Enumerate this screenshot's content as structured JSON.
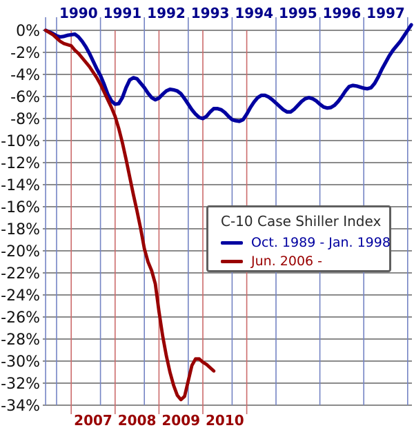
{
  "chart_data": {
    "type": "line",
    "title": "C-10 Case Shiller Index",
    "y_axis": {
      "unit": "%",
      "max": 0,
      "min": -34,
      "step": 2,
      "tick_labels": [
        "0%",
        "-2%",
        "-4%",
        "-6%",
        "-8%",
        "-10%",
        "-12%",
        "-14%",
        "-16%",
        "-18%",
        "-20%",
        "-22%",
        "-24%",
        "-26%",
        "-28%",
        "-30%",
        "-32%",
        "-34%"
      ],
      "label_color": "#111111"
    },
    "top_axis": {
      "tick_labels": [
        "1990",
        "1991",
        "1992",
        "1993",
        "1994",
        "1995",
        "1996",
        "1997"
      ],
      "label_color": "#00008b",
      "gridline_color": "#7484c4"
    },
    "bottom_axis": {
      "tick_labels": [
        "2007",
        "2008",
        "2009",
        "2010"
      ],
      "label_color": "#990000",
      "gridline_color": "#cc6b6b"
    },
    "grid": {
      "horizontal_color": "#7a7a7a"
    },
    "alignment": "both series plotted by months since series start",
    "series": [
      {
        "name": "Oct. 1989 - Jan. 1998",
        "color": "#0000a0",
        "start_label": "Oct. 1989",
        "interval": "monthly",
        "axis": "top",
        "values": [
          0.0,
          -0.15,
          -0.3,
          -0.5,
          -0.6,
          -0.55,
          -0.45,
          -0.4,
          -0.35,
          -0.6,
          -1.0,
          -1.5,
          -2.1,
          -2.8,
          -3.5,
          -4.1,
          -4.9,
          -5.8,
          -6.4,
          -6.7,
          -6.65,
          -6.1,
          -5.2,
          -4.5,
          -4.3,
          -4.4,
          -4.8,
          -5.2,
          -5.7,
          -6.1,
          -6.3,
          -6.15,
          -5.8,
          -5.5,
          -5.35,
          -5.4,
          -5.5,
          -5.75,
          -6.2,
          -6.7,
          -7.2,
          -7.6,
          -7.9,
          -8.0,
          -7.8,
          -7.4,
          -7.1,
          -7.1,
          -7.2,
          -7.45,
          -7.8,
          -8.1,
          -8.2,
          -8.25,
          -8.1,
          -7.6,
          -7.0,
          -6.5,
          -6.1,
          -5.9,
          -5.9,
          -6.05,
          -6.3,
          -6.6,
          -6.9,
          -7.2,
          -7.4,
          -7.4,
          -7.15,
          -6.8,
          -6.45,
          -6.2,
          -6.1,
          -6.2,
          -6.4,
          -6.7,
          -6.95,
          -7.05,
          -7.0,
          -6.8,
          -6.45,
          -6.0,
          -5.5,
          -5.1,
          -5.0,
          -5.05,
          -5.15,
          -5.25,
          -5.3,
          -5.2,
          -4.8,
          -4.2,
          -3.5,
          -2.9,
          -2.3,
          -1.8,
          -1.4,
          -1.0,
          -0.5,
          0.0,
          0.5
        ]
      },
      {
        "name": "Jun. 2006 -",
        "color": "#990000",
        "start_label": "Jun. 2006",
        "interval": "monthly",
        "axis": "bottom",
        "values": [
          0.0,
          -0.2,
          -0.4,
          -0.7,
          -1.0,
          -1.2,
          -1.3,
          -1.4,
          -1.8,
          -2.1,
          -2.5,
          -2.9,
          -3.3,
          -3.8,
          -4.3,
          -4.9,
          -5.6,
          -6.3,
          -7.0,
          -7.8,
          -8.9,
          -10.2,
          -11.7,
          -13.3,
          -14.9,
          -16.4,
          -18.0,
          -19.8,
          -21.0,
          -21.8,
          -23.0,
          -25.5,
          -27.7,
          -29.5,
          -31.0,
          -32.2,
          -33.1,
          -33.5,
          -33.2,
          -31.8,
          -30.4,
          -29.8,
          -29.8,
          -30.1,
          -30.3,
          -30.6,
          -30.9
        ]
      }
    ],
    "legend": {
      "title": "C-10 Case Shiller Index",
      "position": "middle-right",
      "entries": [
        "Oct. 1989 - Jan. 1998",
        "Jun. 2006 -"
      ]
    }
  }
}
